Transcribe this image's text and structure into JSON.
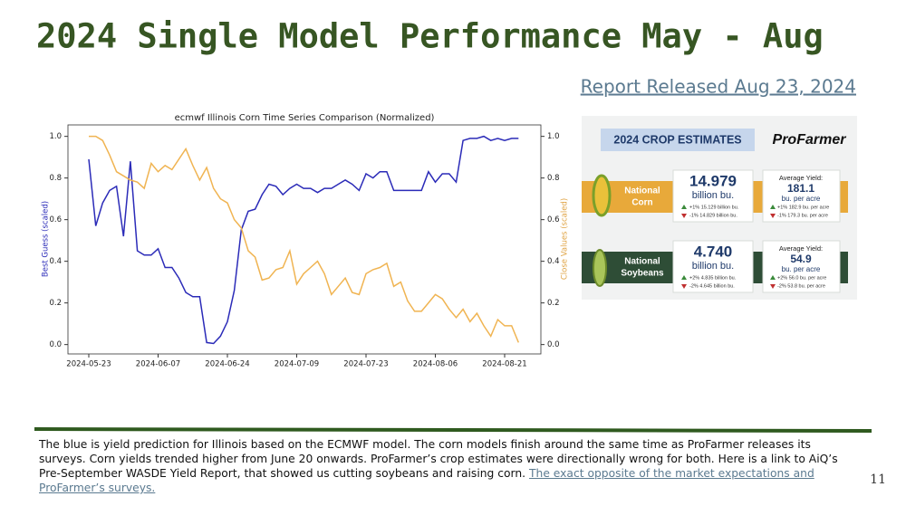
{
  "header": {
    "title": "2024 Single Model Performance May - Aug",
    "link": "Report Released Aug 23, 2024"
  },
  "chart_data": {
    "type": "line",
    "title": "ecmwf Illinois Corn Time Series Comparison (Normalized)",
    "y_label": "Best Guess (scaled)",
    "y2_label": "Close Values (scaled)",
    "categories": [
      "2024-05-23",
      null,
      null,
      null,
      null,
      null,
      null,
      null,
      null,
      null,
      "2024-06-07",
      null,
      null,
      null,
      null,
      null,
      null,
      null,
      null,
      null,
      "2024-06-24",
      null,
      null,
      null,
      null,
      null,
      null,
      null,
      null,
      null,
      "2024-07-09",
      null,
      null,
      null,
      null,
      null,
      null,
      null,
      null,
      null,
      "2024-07-23",
      null,
      null,
      null,
      null,
      null,
      null,
      null,
      null,
      null,
      "2024-08-06",
      null,
      null,
      null,
      null,
      null,
      null,
      null,
      null,
      null,
      "2024-08-21",
      null,
      null
    ],
    "series": [
      {
        "color": "#2b2bb8",
        "values": [
          0.89,
          0.57,
          0.68,
          0.74,
          0.76,
          0.52,
          0.88,
          0.45,
          0.43,
          0.43,
          0.46,
          0.37,
          0.37,
          0.32,
          0.25,
          0.23,
          0.23,
          0.01,
          0.005,
          0.04,
          0.11,
          0.26,
          0.55,
          0.64,
          0.65,
          0.72,
          0.77,
          0.76,
          0.72,
          0.75,
          0.77,
          0.75,
          0.75,
          0.73,
          0.75,
          0.75,
          0.77,
          0.79,
          0.77,
          0.74,
          0.82,
          0.8,
          0.83,
          0.83,
          0.74,
          0.74,
          0.74,
          0.74,
          0.74,
          0.83,
          0.78,
          0.82,
          0.82,
          0.78,
          0.98,
          0.99,
          0.99,
          1.0,
          0.98,
          0.99,
          0.98,
          0.99,
          0.99
        ]
      },
      {
        "color": "#f0b452",
        "axis": "y2",
        "values": [
          1.0,
          1.0,
          0.98,
          0.91,
          0.83,
          0.81,
          0.79,
          0.78,
          0.75,
          0.87,
          0.83,
          0.86,
          0.84,
          0.89,
          0.94,
          0.86,
          0.79,
          0.85,
          0.75,
          0.7,
          0.68,
          0.6,
          0.56,
          0.45,
          0.42,
          0.31,
          0.32,
          0.36,
          0.37,
          0.45,
          0.29,
          0.34,
          0.37,
          0.4,
          0.34,
          0.24,
          0.28,
          0.32,
          0.25,
          0.24,
          0.34,
          0.36,
          0.37,
          0.39,
          0.28,
          0.3,
          0.21,
          0.16,
          0.16,
          0.2,
          0.24,
          0.22,
          0.17,
          0.13,
          0.17,
          0.11,
          0.15,
          0.09,
          0.04,
          0.12,
          0.09,
          0.09,
          0.01
        ]
      }
    ],
    "ylim": [
      -0.045,
      1.055
    ],
    "yticks": [
      {
        "value": 0,
        "label": "0.0"
      },
      0.2,
      0.4,
      0.6,
      0.8,
      {
        "value": 1,
        "label": "1.0"
      }
    ],
    "y2lim": [
      -0.045,
      1.055
    ],
    "y2ticks": [
      {
        "value": 0,
        "label": "0.0"
      },
      0.2,
      0.4,
      0.6,
      0.8,
      {
        "value": 1,
        "label": "1.0"
      }
    ],
    "grid": false
  },
  "crop_estimates": {
    "heading": "2024 CROP ESTIMATES",
    "brand": "ProFarmer",
    "rows": [
      {
        "label": [
          "National",
          "Corn"
        ],
        "total": "14.979",
        "total_unit": "billion bu.",
        "total_up": "+1%  15.129 billion bu.",
        "total_down": "-1%  14.829 billion bu.",
        "yield_label": "Average Yield:",
        "yield": "181.1",
        "yield_unit": "bu. per acre",
        "yield_up": "+1%  182.9 bu. per acre",
        "yield_down": "-1%  179.3 bu. per acre"
      },
      {
        "label": [
          "National",
          "Soybeans"
        ],
        "total": "4.740",
        "total_unit": "billion bu.",
        "total_up": "+2%  4.835 billion bu.",
        "total_down": "-2%  4.645 billion bu.",
        "yield_label": "Average Yield:",
        "yield": "54.9",
        "yield_unit": "bu. per acre",
        "yield_up": "+2%  56.0 bu. per acre",
        "yield_down": "-2%  53.8 bu. per acre"
      }
    ]
  },
  "body": {
    "text": "The blue is yield prediction for Illinois based on the ECMWF model. The corn models finish around the same time as ProFarmer releases its surveys. Corn yields trended higher from June 20 onwards. ProFarmer’s crop estimates were directionally wrong for both. Here is a link to AiQ’s Pre-September WASDE Yield Report, that showed us cutting soybeans and raising corn.",
    "link": "The exact opposite of the market expectations and ProFarmer’s surveys."
  },
  "page_number": "11"
}
